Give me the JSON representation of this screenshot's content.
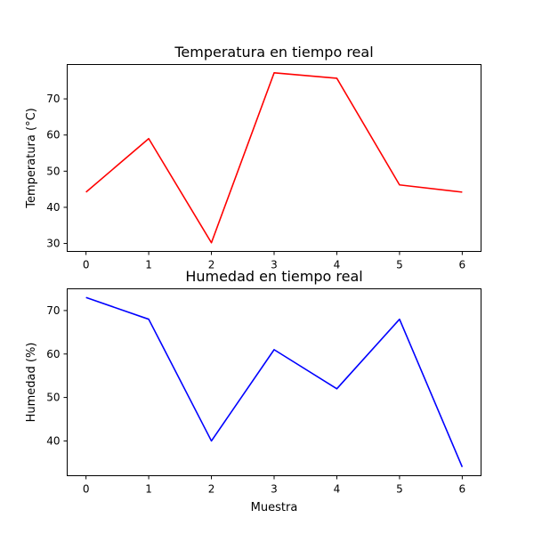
{
  "chart_data": [
    {
      "type": "line",
      "title": "Temperatura en tiempo real",
      "xlabel": "",
      "ylabel": "Temperatura (°C)",
      "x": [
        0,
        1,
        2,
        3,
        4,
        5,
        6
      ],
      "series": [
        {
          "color": "#ff0000",
          "values": [
            44.2,
            59.0,
            30.2,
            77.2,
            75.7,
            46.2,
            44.2
          ]
        }
      ],
      "xlim": [
        -0.3,
        6.3
      ],
      "ylim": [
        27.8,
        79.5
      ],
      "xticks": [
        0,
        1,
        2,
        3,
        4,
        5,
        6
      ],
      "yticks": [
        30,
        40,
        50,
        60,
        70
      ],
      "grid": false
    },
    {
      "type": "line",
      "title": "Humedad en tiempo real",
      "xlabel": "Muestra",
      "ylabel": "Humedad (%)",
      "x": [
        0,
        1,
        2,
        3,
        4,
        5,
        6
      ],
      "series": [
        {
          "color": "#0000ff",
          "values": [
            73,
            68,
            40,
            61,
            52,
            68,
            34
          ]
        }
      ],
      "xlim": [
        -0.3,
        6.3
      ],
      "ylim": [
        32.0,
        75.0
      ],
      "xticks": [
        0,
        1,
        2,
        3,
        4,
        5,
        6
      ],
      "yticks": [
        40,
        50,
        60,
        70
      ],
      "grid": false
    }
  ]
}
